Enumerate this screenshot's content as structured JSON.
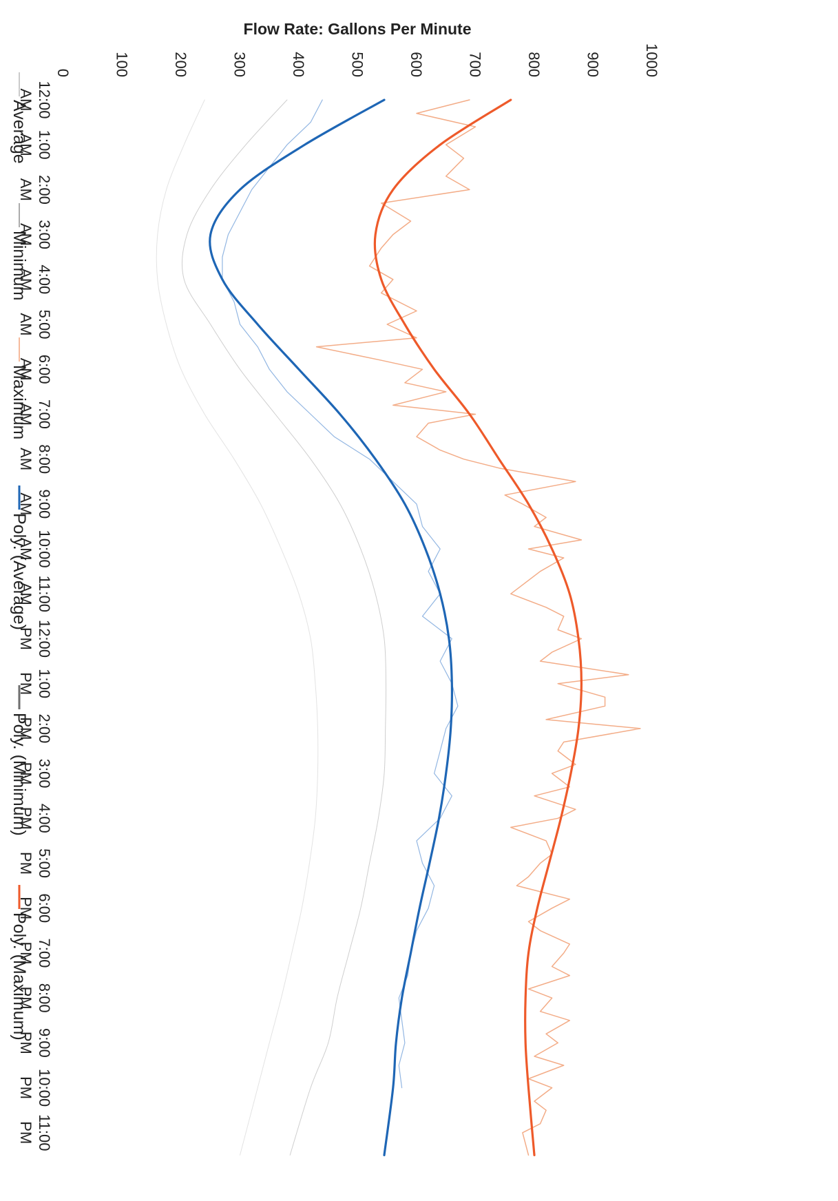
{
  "chart_data": {
    "type": "line",
    "title": "",
    "xlabel": "",
    "ylabel": "Flow Rate: Gallons Per Minute",
    "ylim": [
      0,
      1000
    ],
    "yticks": [
      "0",
      "100",
      "200",
      "300",
      "400",
      "500",
      "600",
      "700",
      "800",
      "900",
      "1000"
    ],
    "x_categories": [
      [
        "12:00",
        "AM"
      ],
      [
        "1:00",
        "AM"
      ],
      [
        "2:00",
        "AM"
      ],
      [
        "3:00",
        "AM"
      ],
      [
        "4:00",
        "AM"
      ],
      [
        "5:00",
        "AM"
      ],
      [
        "6:00",
        "AM"
      ],
      [
        "7:00",
        "AM"
      ],
      [
        "8:00",
        "AM"
      ],
      [
        "9:00",
        "AM"
      ],
      [
        "10:00",
        "AM"
      ],
      [
        "11:00",
        "AM"
      ],
      [
        "12:00",
        "PM"
      ],
      [
        "1:00",
        "PM"
      ],
      [
        "2:00",
        "PM"
      ],
      [
        "3:00",
        "PM"
      ],
      [
        "4:00",
        "PM"
      ],
      [
        "5:00",
        "PM"
      ],
      [
        "6:00",
        "PM"
      ],
      [
        "7:00",
        "PM"
      ],
      [
        "8:00",
        "PM"
      ],
      [
        "9:00",
        "PM"
      ],
      [
        "10:00",
        "PM"
      ],
      [
        "11:00",
        "PM"
      ]
    ],
    "x_range": [
      0,
      24
    ],
    "grid": false,
    "legend_position": "top",
    "rotated": "page rotated 90 degrees clockwise",
    "series": [
      {
        "name": "Average",
        "color": "#b9b9b9",
        "width": 1,
        "opacity": 0.7,
        "x": [
          0,
          1,
          2,
          3,
          4,
          5,
          6,
          7,
          8,
          9,
          10,
          11,
          12,
          13,
          14,
          15,
          16,
          17,
          18,
          19,
          20,
          21,
          22,
          23.5
        ],
        "y": [
          380,
          310,
          250,
          210,
          205,
          250,
          300,
          360,
          420,
          470,
          505,
          530,
          545,
          548,
          547,
          545,
          535,
          520,
          505,
          485,
          465,
          450,
          420,
          385
        ]
      },
      {
        "name": "Minimum",
        "color": "#8f8f8f",
        "width": 1,
        "opacity": 0.25,
        "x": [
          0,
          1,
          2,
          3,
          4,
          5,
          6,
          7,
          8,
          9,
          10,
          11,
          12,
          13,
          14,
          15,
          16,
          17,
          18,
          19,
          20,
          21,
          22,
          23.5
        ],
        "y": [
          240,
          205,
          175,
          160,
          160,
          175,
          200,
          240,
          290,
          335,
          370,
          400,
          420,
          428,
          432,
          432,
          428,
          418,
          405,
          388,
          370,
          350,
          330,
          300
        ]
      },
      {
        "name": "Maximum",
        "color": "#f2a37a",
        "width": 1.5,
        "opacity": 0.9,
        "x": [
          0,
          0.3,
          0.6,
          1,
          1.3,
          1.7,
          2,
          2.3,
          2.7,
          3,
          3.3,
          3.7,
          4,
          4.3,
          4.7,
          5,
          5.3,
          5.5,
          5.8,
          6,
          6.3,
          6.5,
          6.8,
          7,
          7.2,
          7.5,
          7.8,
          8,
          8.2,
          8.5,
          8.8,
          9,
          9.3,
          9.5,
          9.8,
          10,
          10.2,
          10.5,
          10.8,
          11,
          11.3,
          11.5,
          11.8,
          12,
          12.3,
          12.5,
          12.8,
          13,
          13.3,
          13.5,
          13.8,
          14,
          14.3,
          14.5,
          14.8,
          15,
          15.3,
          15.5,
          15.8,
          16,
          16.2,
          16.5,
          16.8,
          17,
          17.3,
          17.5,
          17.8,
          18,
          18.3,
          18.5,
          18.8,
          19,
          19.3,
          19.5,
          19.8,
          20,
          20.3,
          20.5,
          20.8,
          21,
          21.3,
          21.5,
          21.8,
          22,
          22.3,
          22.5,
          22.8,
          23,
          23.5
        ],
        "y": [
          690,
          600,
          700,
          650,
          680,
          650,
          690,
          540,
          590,
          560,
          540,
          520,
          560,
          540,
          600,
          550,
          600,
          430,
          540,
          610,
          580,
          650,
          560,
          700,
          620,
          600,
          640,
          680,
          740,
          870,
          750,
          780,
          820,
          800,
          880,
          790,
          850,
          810,
          780,
          760,
          820,
          850,
          840,
          880,
          830,
          810,
          960,
          840,
          920,
          920,
          820,
          980,
          850,
          840,
          870,
          830,
          860,
          800,
          870,
          840,
          760,
          820,
          830,
          810,
          790,
          770,
          860,
          830,
          790,
          810,
          860,
          850,
          830,
          860,
          790,
          830,
          810,
          860,
          820,
          840,
          800,
          850,
          790,
          830,
          800,
          820,
          810,
          780,
          790
        ]
      },
      {
        "name": "Poly. (Average)",
        "color": "#1e66b5",
        "width": 3.2,
        "opacity": 1,
        "x": [
          0,
          1,
          2,
          3,
          4,
          5,
          6,
          7,
          8,
          9,
          10,
          11,
          12,
          13,
          14,
          15,
          16,
          17,
          18,
          19,
          20,
          21,
          22,
          23.5
        ],
        "y": [
          545,
          410,
          300,
          250,
          270,
          330,
          400,
          470,
          530,
          580,
          615,
          640,
          655,
          660,
          658,
          650,
          638,
          622,
          605,
          590,
          575,
          565,
          560,
          545
        ]
      },
      {
        "name": "Poly. (Minimum)",
        "color": "#6e6e6e",
        "width": 1,
        "opacity": 0.9,
        "x": [],
        "y": []
      },
      {
        "name": "Poly. (Maximum)",
        "color": "#ee5a2a",
        "width": 3.2,
        "opacity": 1,
        "x": [
          0,
          1,
          2,
          3,
          4,
          5,
          6,
          7,
          8,
          9,
          10,
          11,
          12,
          13,
          14,
          15,
          16,
          17,
          18,
          19,
          20,
          21,
          22,
          23.5
        ],
        "y": [
          760,
          640,
          560,
          530,
          540,
          580,
          630,
          690,
          740,
          790,
          830,
          860,
          875,
          880,
          875,
          862,
          845,
          825,
          805,
          790,
          785,
          785,
          790,
          800
        ]
      },
      {
        "name": "Average (light blue detail)",
        "color": "#7fa9dd",
        "width": 1.2,
        "opacity": 0.85,
        "legend": false,
        "x": [
          0,
          0.5,
          1,
          1.5,
          2,
          2.5,
          3,
          3.5,
          4,
          4.5,
          5,
          5.5,
          6,
          6.5,
          7,
          7.5,
          8,
          8.5,
          9,
          9.5,
          10,
          10.5,
          11,
          11.5,
          12,
          12.5,
          13,
          13.5,
          14,
          14.5,
          15,
          15.5,
          16,
          16.5,
          17,
          17.5,
          18,
          18.5,
          19,
          19.5,
          20,
          20.5,
          21,
          21.5,
          22
        ],
        "y": [
          440,
          420,
          380,
          350,
          320,
          300,
          280,
          270,
          270,
          290,
          300,
          330,
          350,
          380,
          420,
          460,
          520,
          560,
          600,
          610,
          640,
          620,
          640,
          610,
          660,
          640,
          660,
          670,
          650,
          640,
          630,
          660,
          640,
          600,
          610,
          630,
          620,
          600,
          590,
          585,
          570,
          575,
          580,
          570,
          575
        ]
      }
    ],
    "legend": [
      "Average",
      "Minimum",
      "Maximum",
      "Poly. (Average)",
      "Poly. (Minimum)",
      "Poly. (Maximum)"
    ]
  }
}
